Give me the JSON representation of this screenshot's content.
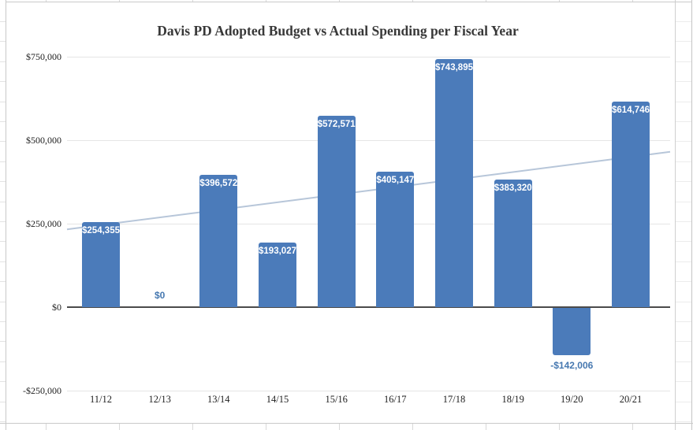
{
  "chart_data": {
    "type": "bar",
    "title": "Davis PD Adopted Budget vs Actual Spending per Fiscal Year",
    "categories": [
      "11/12",
      "12/13",
      "13/14",
      "14/15",
      "15/16",
      "16/17",
      "17/18",
      "18/19",
      "19/20",
      "20/21"
    ],
    "values": [
      254355,
      0,
      396572,
      193027,
      572571,
      405147,
      743895,
      383320,
      -142006,
      614746
    ],
    "data_labels": [
      "$254,355",
      "$0",
      "$396,572",
      "$193,027",
      "$572,571",
      "$405,147",
      "$743,895",
      "$383,320",
      "-$142,006",
      "$614,746"
    ],
    "xlabel": "",
    "ylabel": "",
    "ylim": [
      -250000,
      775000
    ],
    "grid": "horizontal",
    "legend": "none",
    "y_ticks": [
      {
        "value": 750000,
        "label": "$750,000"
      },
      {
        "value": 500000,
        "label": "$500,000"
      },
      {
        "value": 250000,
        "label": "$250,000"
      },
      {
        "value": 0,
        "label": "$0"
      },
      {
        "value": -250000,
        "label": "-$250,000"
      }
    ],
    "trendline": {
      "type": "linear",
      "start_value": 233000,
      "end_value": 465000
    },
    "colors": {
      "bar": "#4b7bba",
      "bar_label_text": "#ffffff",
      "blue_label_text": "#4678b0",
      "trend": "#b7c6d9",
      "grid": "#e5e5e5",
      "axis": "#4b4b4b",
      "title_text": "#383838",
      "tick_text": "#222222"
    }
  }
}
